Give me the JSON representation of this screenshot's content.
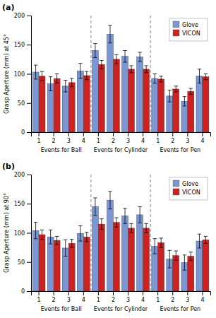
{
  "chart_data": [
    {
      "type": "bar",
      "title": "(a)",
      "y_label": "Grasp Aperture (mm) at 45°",
      "categories": [
        "1",
        "2",
        "3",
        "4",
        "1",
        "2",
        "3",
        "4",
        "1",
        "2",
        "3",
        "4"
      ],
      "annotations": [
        "Events for Ball",
        "Events for Cylinder",
        "Events for Pen"
      ],
      "series": [
        {
          "name": "Glove",
          "color": "#7B96D2",
          "values": [
            103,
            83,
            79,
            105,
            140,
            168,
            130,
            129,
            92,
            62,
            53,
            96
          ],
          "errors": [
            12,
            12,
            10,
            13,
            12,
            15,
            10,
            8,
            8,
            10,
            8,
            12
          ]
        },
        {
          "name": "VICON",
          "color": "#CC2222",
          "values": [
            96,
            92,
            85,
            97,
            116,
            125,
            108,
            108,
            91,
            74,
            70,
            95
          ],
          "errors": [
            8,
            8,
            7,
            7,
            7,
            8,
            6,
            6,
            5,
            5,
            5,
            5
          ]
        }
      ],
      "ylim": [
        0,
        200
      ],
      "yticks": [
        0,
        50,
        100,
        150,
        200
      ],
      "grid": false,
      "legend": "upper right"
    },
    {
      "type": "bar",
      "title": "(b)",
      "y_label": "Grasp Aperture (mm) at 90°",
      "categories": [
        "1",
        "2",
        "3",
        "4",
        "1",
        "2",
        "3",
        "4",
        "1",
        "2",
        "3",
        "4"
      ],
      "annotations": [
        "Events for Ball",
        "Events for Cylinder",
        "Events for Pen"
      ],
      "series": [
        {
          "name": "Glove",
          "color": "#7B96D2",
          "values": [
            104,
            93,
            74,
            99,
            145,
            156,
            129,
            131,
            77,
            55,
            49,
            86
          ],
          "errors": [
            14,
            12,
            14,
            13,
            15,
            15,
            13,
            14,
            13,
            15,
            13,
            12
          ]
        },
        {
          "name": "VICON",
          "color": "#CC2222",
          "values": [
            97,
            87,
            82,
            93,
            115,
            118,
            108,
            108,
            83,
            61,
            60,
            88
          ],
          "errors": [
            8,
            7,
            7,
            8,
            9,
            8,
            8,
            8,
            8,
            8,
            7,
            6
          ]
        }
      ],
      "ylim": [
        0,
        200
      ],
      "yticks": [
        0,
        50,
        100,
        150,
        200
      ],
      "grid": false,
      "legend": "upper right"
    }
  ]
}
